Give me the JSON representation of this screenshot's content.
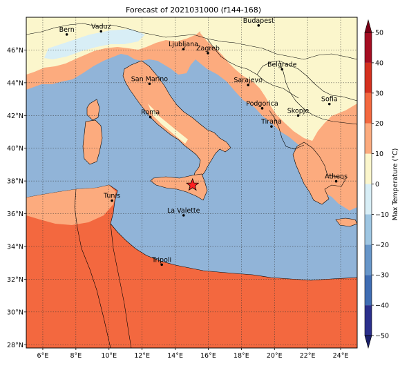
{
  "title": "Forecast of 2021031000 (f144-168)",
  "map": {
    "lon_range": [
      5,
      25
    ],
    "lat_range": [
      27.8,
      48
    ],
    "lon_ticks": [
      {
        "value": 6,
        "label": "6°E"
      },
      {
        "value": 8,
        "label": "8°E"
      },
      {
        "value": 10,
        "label": "10°E"
      },
      {
        "value": 12,
        "label": "12°E"
      },
      {
        "value": 14,
        "label": "14°E"
      },
      {
        "value": 16,
        "label": "16°E"
      },
      {
        "value": 18,
        "label": "18°E"
      },
      {
        "value": 20,
        "label": "20°E"
      },
      {
        "value": 22,
        "label": "22°E"
      },
      {
        "value": 24,
        "label": "24°E"
      }
    ],
    "lat_ticks": [
      {
        "value": 28,
        "label": "28°N"
      },
      {
        "value": 30,
        "label": "30°N"
      },
      {
        "value": 32,
        "label": "32°N"
      },
      {
        "value": 34,
        "label": "34°N"
      },
      {
        "value": 36,
        "label": "36°N"
      },
      {
        "value": 38,
        "label": "38°N"
      },
      {
        "value": 40,
        "label": "40°N"
      },
      {
        "value": 42,
        "label": "42°N"
      },
      {
        "value": 44,
        "label": "44°N"
      },
      {
        "value": 46,
        "label": "46°N"
      }
    ],
    "gridlines": true,
    "sea_color": "#91b4d8",
    "cities": [
      {
        "name": "Bern",
        "lon": 7.45,
        "lat": 46.95
      },
      {
        "name": "Vaduz",
        "lon": 9.52,
        "lat": 47.14
      },
      {
        "name": "Budapest",
        "lon": 19.04,
        "lat": 47.5
      },
      {
        "name": "Ljubljana",
        "lon": 14.5,
        "lat": 46.05
      },
      {
        "name": "Zagreb",
        "lon": 15.98,
        "lat": 45.81
      },
      {
        "name": "Belgrade",
        "lon": 20.46,
        "lat": 44.82
      },
      {
        "name": "Sarajevo",
        "lon": 18.41,
        "lat": 43.86
      },
      {
        "name": "San Marino",
        "lon": 12.45,
        "lat": 43.94
      },
      {
        "name": "Sofia",
        "lon": 23.32,
        "lat": 42.7
      },
      {
        "name": "Podgorica",
        "lon": 19.26,
        "lat": 42.44
      },
      {
        "name": "Skopje",
        "lon": 21.43,
        "lat": 42.0
      },
      {
        "name": "Roma",
        "lon": 12.5,
        "lat": 41.9
      },
      {
        "name": "Tirana",
        "lon": 19.82,
        "lat": 41.33
      },
      {
        "name": "Athens",
        "lon": 23.73,
        "lat": 37.98
      },
      {
        "name": "Tunis",
        "lon": 10.18,
        "lat": 36.8
      },
      {
        "name": "La Valette",
        "lon": 14.51,
        "lat": 35.9
      },
      {
        "name": "Tripoli",
        "lon": 13.19,
        "lat": 32.89
      }
    ],
    "marker": {
      "type": "star",
      "lon": 15.05,
      "lat": 37.75,
      "color": "#ff2020"
    }
  },
  "colorbar": {
    "label": "Max Temperature (°C)",
    "min": -50,
    "max": 50,
    "bins": [
      {
        "from": -50,
        "to": -40,
        "color": "#2b2f8c"
      },
      {
        "from": -40,
        "to": -30,
        "color": "#3f6db3"
      },
      {
        "from": -30,
        "to": -20,
        "color": "#6796c9"
      },
      {
        "from": -20,
        "to": -10,
        "color": "#9ec6e2"
      },
      {
        "from": -10,
        "to": 0,
        "color": "#d8eef6"
      },
      {
        "from": 0,
        "to": 10,
        "color": "#fbf6cc"
      },
      {
        "from": 10,
        "to": 20,
        "color": "#fcab7e"
      },
      {
        "from": 20,
        "to": 30,
        "color": "#f3683f"
      },
      {
        "from": 30,
        "to": 40,
        "color": "#d4301f"
      },
      {
        "from": 40,
        "to": 50,
        "color": "#a50d22"
      }
    ],
    "extend_low_color": "#1b1f6a",
    "extend_high_color": "#7a0017",
    "ticks": [
      {
        "value": 50,
        "label": "50"
      },
      {
        "value": 40,
        "label": "40"
      },
      {
        "value": 30,
        "label": "30"
      },
      {
        "value": 20,
        "label": "20"
      },
      {
        "value": 10,
        "label": "10"
      },
      {
        "value": 0,
        "label": "0"
      },
      {
        "value": -10,
        "label": "−10"
      },
      {
        "value": -20,
        "label": "−20"
      },
      {
        "value": -30,
        "label": "−30"
      },
      {
        "value": -40,
        "label": "−40"
      },
      {
        "value": -50,
        "label": "−50"
      }
    ]
  }
}
